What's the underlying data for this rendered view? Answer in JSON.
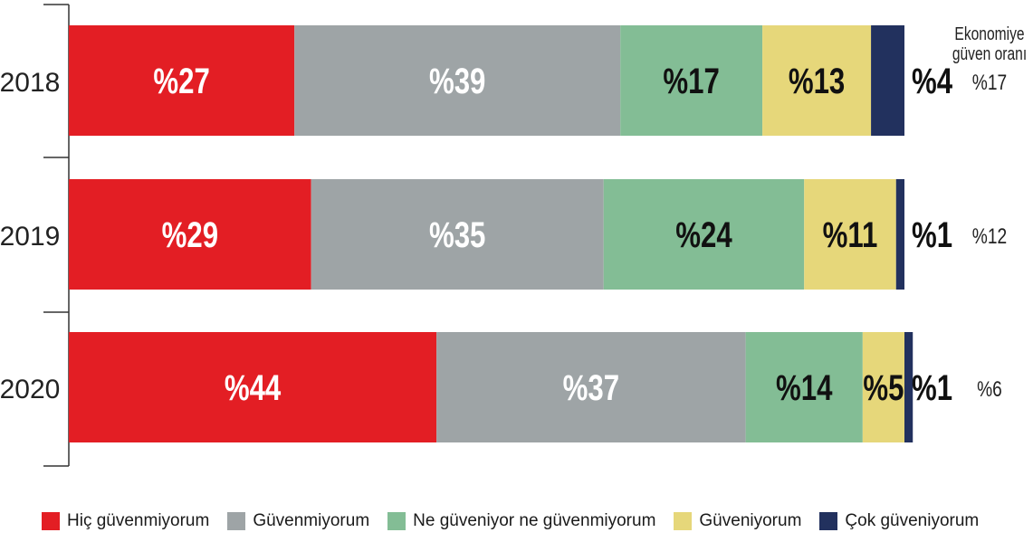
{
  "chart_data": {
    "type": "bar",
    "orientation": "horizontal",
    "stacked": true,
    "categories": [
      "2018",
      "2019",
      "2020"
    ],
    "series": [
      {
        "name": "Hiç güvenmiyorum",
        "color": "#e31e24",
        "values": [
          27,
          29,
          44
        ],
        "labels": [
          "%27",
          "%29",
          "%44"
        ]
      },
      {
        "name": "Güvenmiyorum",
        "color": "#9ea4a6",
        "values": [
          39,
          35,
          37
        ],
        "labels": [
          "%39",
          "%35",
          "%37"
        ]
      },
      {
        "name": "Ne güveniyor ne güvenmiyorum",
        "color": "#83bd95",
        "values": [
          17,
          24,
          14
        ],
        "labels": [
          "%17",
          "%24",
          "%14"
        ]
      },
      {
        "name": "Güveniyorum",
        "color": "#e6d77a",
        "values": [
          13,
          11,
          5
        ],
        "labels": [
          "%13",
          "%11",
          "%5"
        ]
      },
      {
        "name": "Çok güveniyorum",
        "color": "#22315e",
        "values": [
          4,
          1,
          1
        ],
        "labels": [
          "%4",
          "%1",
          "%1"
        ]
      }
    ],
    "side_column": {
      "title": [
        "Ekonomiye",
        "güven oranı"
      ],
      "values": [
        "%17",
        "%12",
        "%6"
      ]
    },
    "xlim": [
      0,
      100
    ]
  }
}
